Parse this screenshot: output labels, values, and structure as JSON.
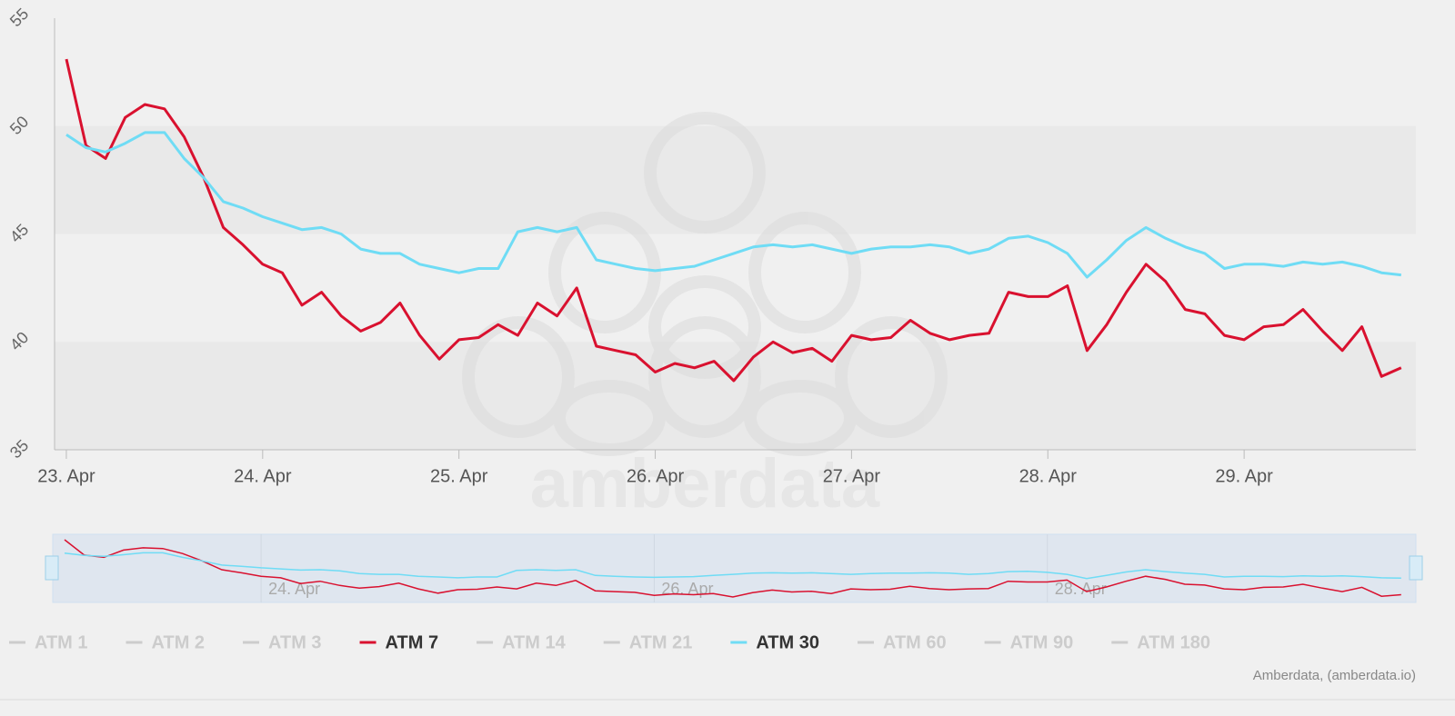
{
  "chart_data": {
    "type": "line",
    "watermark": "amberdata",
    "credits": "Amberdata, (amberdata.io)",
    "x": [
      0,
      0.1,
      0.2,
      0.3,
      0.4,
      0.5,
      0.6,
      0.7,
      0.8,
      0.9,
      1,
      1.1,
      1.2,
      1.3,
      1.4,
      1.5,
      1.6,
      1.7,
      1.8,
      1.9,
      2,
      2.1,
      2.2,
      2.3,
      2.4,
      2.5,
      2.6,
      2.7,
      2.8,
      2.9,
      3,
      3.1,
      3.2,
      3.3,
      3.4,
      3.5,
      3.6,
      3.7,
      3.8,
      3.9,
      4,
      4.1,
      4.2,
      4.3,
      4.4,
      4.5,
      4.6,
      4.7,
      4.8,
      4.9,
      5,
      5.1,
      5.2,
      5.3,
      5.4,
      5.5,
      5.6,
      5.7,
      5.8,
      5.9,
      6,
      6.1,
      6.2,
      6.3,
      6.4,
      6.5,
      6.6,
      6.7,
      6.8
    ],
    "xlim": [
      -0.06,
      6.875
    ],
    "xticks": [
      {
        "value": 0,
        "label": "23. Apr"
      },
      {
        "value": 1,
        "label": "24. Apr"
      },
      {
        "value": 2,
        "label": "25. Apr"
      },
      {
        "value": 3,
        "label": "26. Apr"
      },
      {
        "value": 4,
        "label": "27. Apr"
      },
      {
        "value": 5,
        "label": "28. Apr"
      },
      {
        "value": 6,
        "label": "29. Apr"
      }
    ],
    "navigator_xticks": [
      1,
      3,
      5
    ],
    "ylim": [
      35,
      55
    ],
    "yticks": [
      35,
      40,
      45,
      50,
      55
    ],
    "series": [
      {
        "name": "ATM 1",
        "visible": false
      },
      {
        "name": "ATM 2",
        "visible": false
      },
      {
        "name": "ATM 3",
        "visible": false
      },
      {
        "name": "ATM 7",
        "visible": true,
        "color": "#d9112f",
        "values": [
          53.1,
          49.1,
          48.5,
          50.4,
          51.0,
          50.8,
          49.5,
          47.6,
          45.3,
          44.5,
          43.6,
          43.2,
          41.7,
          42.3,
          41.2,
          40.5,
          40.9,
          41.8,
          40.3,
          39.2,
          40.1,
          40.2,
          40.8,
          40.3,
          41.8,
          41.2,
          42.5,
          39.8,
          39.6,
          39.4,
          38.6,
          39.0,
          38.8,
          39.1,
          38.2,
          39.3,
          40.0,
          39.5,
          39.7,
          39.1,
          40.3,
          40.1,
          40.2,
          41.0,
          40.4,
          40.1,
          40.3,
          40.4,
          42.3,
          42.1,
          42.1,
          42.6,
          39.6,
          40.8,
          42.3,
          43.6,
          42.8,
          41.5,
          41.3,
          40.3,
          40.1,
          40.7,
          40.8,
          41.5,
          40.5,
          39.6,
          40.7,
          38.4,
          38.8
        ]
      },
      {
        "name": "ATM 14",
        "visible": false
      },
      {
        "name": "ATM 21",
        "visible": false
      },
      {
        "name": "ATM 30",
        "visible": true,
        "color": "#6fdcf5",
        "values": [
          49.6,
          49.0,
          48.8,
          49.2,
          49.7,
          49.7,
          48.5,
          47.6,
          46.5,
          46.2,
          45.8,
          45.5,
          45.2,
          45.3,
          45.0,
          44.3,
          44.1,
          44.1,
          43.6,
          43.4,
          43.2,
          43.4,
          43.4,
          45.1,
          45.3,
          45.1,
          45.3,
          43.8,
          43.6,
          43.4,
          43.3,
          43.4,
          43.5,
          43.8,
          44.1,
          44.4,
          44.5,
          44.4,
          44.5,
          44.3,
          44.1,
          44.3,
          44.4,
          44.4,
          44.5,
          44.4,
          44.1,
          44.3,
          44.8,
          44.9,
          44.6,
          44.1,
          43.0,
          43.8,
          44.7,
          45.3,
          44.8,
          44.4,
          44.1,
          43.4,
          43.6,
          43.6,
          43.5,
          43.7,
          43.6,
          43.7,
          43.5,
          43.2,
          43.1
        ]
      },
      {
        "name": "ATM 60",
        "visible": false
      },
      {
        "name": "ATM 90",
        "visible": false
      },
      {
        "name": "ATM 180",
        "visible": false
      }
    ]
  }
}
